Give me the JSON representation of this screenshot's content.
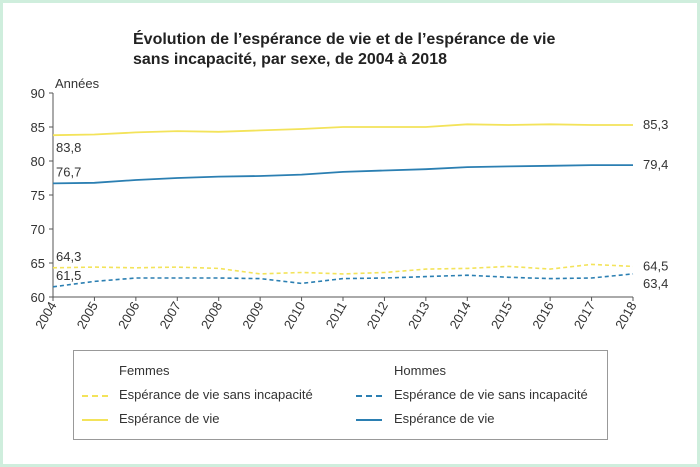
{
  "colors": {
    "women": "#f3e35a",
    "men": "#2b7fb2",
    "frame": "#cfeedd",
    "axis": "#555555"
  },
  "chart_data": {
    "type": "line",
    "title_lines": [
      "Évolution de l’espérance de vie et de l’espérance de vie",
      "sans incapacité, par sexe, de 2004 à 2018"
    ],
    "ylabel": "Années",
    "xlabel": "",
    "ylim": [
      60,
      90
    ],
    "yticks": [
      "60",
      "65",
      "70",
      "75",
      "80",
      "85",
      "90"
    ],
    "x": [
      "2004",
      "2005",
      "2006",
      "2007",
      "2008",
      "2009",
      "2010",
      "2011",
      "2012",
      "2013",
      "2014",
      "2015",
      "2016",
      "2017",
      "2018"
    ],
    "grid": false,
    "series": [
      {
        "key": "women_ev",
        "group": "Femmes",
        "name": "Espérance de vie",
        "style": "solid",
        "color": "#f3e35a",
        "values": [
          83.8,
          83.9,
          84.2,
          84.4,
          84.3,
          84.5,
          84.7,
          85.0,
          85.0,
          85.0,
          85.4,
          85.3,
          85.4,
          85.3,
          85.3
        ],
        "start_label": "83,8",
        "end_label": "85,3"
      },
      {
        "key": "men_ev",
        "group": "Hommes",
        "name": "Espérance de vie",
        "style": "solid",
        "color": "#2b7fb2",
        "values": [
          76.7,
          76.8,
          77.2,
          77.5,
          77.7,
          77.8,
          78.0,
          78.4,
          78.6,
          78.8,
          79.1,
          79.2,
          79.3,
          79.4,
          79.4
        ],
        "start_label": "76,7",
        "end_label": "79,4"
      },
      {
        "key": "women_evsi",
        "group": "Femmes",
        "name": "Espérance de vie sans incapacité",
        "style": "dashed",
        "color": "#f3e35a",
        "values": [
          64.3,
          64.4,
          64.3,
          64.4,
          64.2,
          63.4,
          63.6,
          63.4,
          63.6,
          64.1,
          64.2,
          64.5,
          64.1,
          64.8,
          64.5
        ],
        "start_label": "64,3",
        "end_label": "64,5"
      },
      {
        "key": "men_evsi",
        "group": "Hommes",
        "name": "Espérance de vie sans incapacité",
        "style": "dashed",
        "color": "#2b7fb2",
        "values": [
          61.5,
          62.3,
          62.8,
          62.8,
          62.8,
          62.7,
          62.0,
          62.7,
          62.8,
          63.0,
          63.2,
          62.9,
          62.7,
          62.8,
          63.4
        ],
        "start_label": "61,5",
        "end_label": "63,4"
      }
    ]
  },
  "legend": {
    "women_header": "Femmes",
    "men_header": "Hommes",
    "women_evsi": "Espérance de vie sans incapacité",
    "women_ev": "Espérance de vie",
    "men_evsi": "Espérance de vie sans incapacité",
    "men_ev": "Espérance de vie"
  }
}
